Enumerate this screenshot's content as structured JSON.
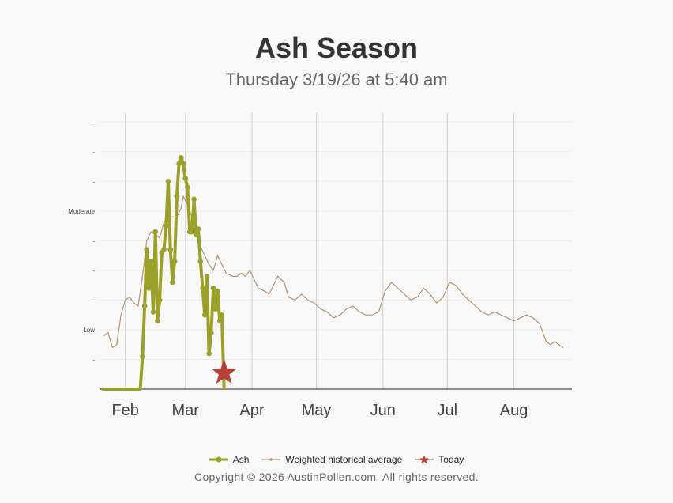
{
  "title": "Ash Season",
  "subtitle": "Thursday 3/19/26 at 5:40 am",
  "copyright": "Copyright © 2026 AustinPollen.com.  All rights reserved.",
  "colors": {
    "ash": "#9aa02a",
    "historical": "#b9926c",
    "today": "#b8403a",
    "grid": "#d0d0d0",
    "axis": "#222222"
  },
  "chart_data": {
    "type": "line",
    "x_axis_type": "date",
    "x_tick_labels": [
      {
        "label": "Feb",
        "date": "2026-02-01"
      },
      {
        "label": "Mar",
        "date": "2026-03-01"
      },
      {
        "label": "Apr",
        "date": "2026-04-01"
      },
      {
        "label": "May",
        "date": "2026-05-01"
      },
      {
        "label": "Jun",
        "date": "2026-06-01"
      },
      {
        "label": "Jul",
        "date": "2026-07-01"
      },
      {
        "label": "Aug",
        "date": "2026-08-01"
      }
    ],
    "xlim": [
      "2026-01-20",
      "2026-08-28"
    ],
    "y_tick_labels": [
      {
        "label": "-",
        "value": 1
      },
      {
        "label": "Low",
        "value": 2
      },
      {
        "label": "-",
        "value": 3
      },
      {
        "label": "-",
        "value": 4
      },
      {
        "label": "-",
        "value": 5
      },
      {
        "label": "Moderate",
        "value": 6
      },
      {
        "label": "-",
        "value": 7
      },
      {
        "label": "-",
        "value": 8
      },
      {
        "label": "-",
        "value": 9
      }
    ],
    "ylim": [
      0,
      9.3
    ],
    "legend_position": "bottom",
    "series": [
      {
        "name": "Ash",
        "points": [
          [
            "2026-01-21",
            0
          ],
          [
            "2026-01-28",
            0
          ],
          [
            "2026-02-05",
            0
          ],
          [
            "2026-02-08",
            0
          ],
          [
            "2026-02-09",
            1.1
          ],
          [
            "2026-02-10",
            2.8
          ],
          [
            "2026-02-11",
            4.7
          ],
          [
            "2026-02-12",
            3.4
          ],
          [
            "2026-02-13",
            4.3
          ],
          [
            "2026-02-14",
            2.6
          ],
          [
            "2026-02-15",
            5.3
          ],
          [
            "2026-02-16",
            2.3
          ],
          [
            "2026-02-17",
            3.0
          ],
          [
            "2026-02-18",
            4.6
          ],
          [
            "2026-02-19",
            4.7
          ],
          [
            "2026-02-20",
            5.5
          ],
          [
            "2026-02-21",
            7.0
          ],
          [
            "2026-02-22",
            4.7
          ],
          [
            "2026-02-23",
            3.6
          ],
          [
            "2026-02-24",
            4.3
          ],
          [
            "2026-02-25",
            6.5
          ],
          [
            "2026-02-26",
            7.6
          ],
          [
            "2026-02-27",
            7.8
          ],
          [
            "2026-02-28",
            7.6
          ],
          [
            "2026-03-01",
            7.1
          ],
          [
            "2026-03-02",
            6.8
          ],
          [
            "2026-03-03",
            5.3
          ],
          [
            "2026-03-04",
            5.3
          ],
          [
            "2026-03-05",
            6.4
          ],
          [
            "2026-03-06",
            5.2
          ],
          [
            "2026-03-07",
            5.4
          ],
          [
            "2026-03-08",
            4.3
          ],
          [
            "2026-03-09",
            3.4
          ],
          [
            "2026-03-10",
            2.5
          ],
          [
            "2026-03-11",
            3.8
          ],
          [
            "2026-03-12",
            1.2
          ],
          [
            "2026-03-13",
            1.9
          ],
          [
            "2026-03-14",
            3.4
          ],
          [
            "2026-03-15",
            2.7
          ],
          [
            "2026-03-16",
            3.3
          ],
          [
            "2026-03-17",
            2.3
          ],
          [
            "2026-03-18",
            2.5
          ],
          [
            "2026-03-19",
            0
          ]
        ]
      },
      {
        "name": "Weighted historical average",
        "points": [
          [
            "2026-01-22",
            1.8
          ],
          [
            "2026-01-24",
            1.9
          ],
          [
            "2026-01-26",
            1.4
          ],
          [
            "2026-01-28",
            1.5
          ],
          [
            "2026-01-30",
            2.5
          ],
          [
            "2026-02-01",
            3.0
          ],
          [
            "2026-02-03",
            3.1
          ],
          [
            "2026-02-05",
            2.9
          ],
          [
            "2026-02-07",
            2.8
          ],
          [
            "2026-02-09",
            3.8
          ],
          [
            "2026-02-11",
            5.0
          ],
          [
            "2026-02-13",
            5.3
          ],
          [
            "2026-02-15",
            5.2
          ],
          [
            "2026-02-17",
            5.1
          ],
          [
            "2026-02-19",
            5.6
          ],
          [
            "2026-02-21",
            5.8
          ],
          [
            "2026-02-23",
            5.8
          ],
          [
            "2026-02-25",
            5.8
          ],
          [
            "2026-02-27",
            6.1
          ],
          [
            "2026-02-28",
            6.5
          ],
          [
            "2026-03-02",
            6.2
          ],
          [
            "2026-03-04",
            5.8
          ],
          [
            "2026-03-06",
            5.3
          ],
          [
            "2026-03-08",
            4.8
          ],
          [
            "2026-03-10",
            4.5
          ],
          [
            "2026-03-12",
            4.2
          ],
          [
            "2026-03-14",
            4.0
          ],
          [
            "2026-03-16",
            4.5
          ],
          [
            "2026-03-18",
            4.2
          ],
          [
            "2026-03-20",
            3.9
          ],
          [
            "2026-03-23",
            3.8
          ],
          [
            "2026-03-25",
            3.8
          ],
          [
            "2026-03-27",
            3.9
          ],
          [
            "2026-03-29",
            3.8
          ],
          [
            "2026-03-31",
            4.0
          ],
          [
            "2026-04-02",
            3.7
          ],
          [
            "2026-04-04",
            3.4
          ],
          [
            "2026-04-07",
            3.3
          ],
          [
            "2026-04-09",
            3.2
          ],
          [
            "2026-04-11",
            3.5
          ],
          [
            "2026-04-13",
            3.8
          ],
          [
            "2026-04-16",
            3.6
          ],
          [
            "2026-04-18",
            3.1
          ],
          [
            "2026-04-21",
            3.0
          ],
          [
            "2026-04-24",
            3.2
          ],
          [
            "2026-04-27",
            3.0
          ],
          [
            "2026-04-30",
            2.9
          ],
          [
            "2026-05-03",
            2.7
          ],
          [
            "2026-05-06",
            2.6
          ],
          [
            "2026-05-09",
            2.4
          ],
          [
            "2026-05-12",
            2.5
          ],
          [
            "2026-05-15",
            2.7
          ],
          [
            "2026-05-18",
            2.8
          ],
          [
            "2026-05-21",
            2.6
          ],
          [
            "2026-05-24",
            2.5
          ],
          [
            "2026-05-27",
            2.5
          ],
          [
            "2026-05-30",
            2.6
          ],
          [
            "2026-06-02",
            3.3
          ],
          [
            "2026-06-05",
            3.6
          ],
          [
            "2026-06-08",
            3.4
          ],
          [
            "2026-06-11",
            3.2
          ],
          [
            "2026-06-14",
            3.0
          ],
          [
            "2026-06-17",
            3.1
          ],
          [
            "2026-06-20",
            3.4
          ],
          [
            "2026-06-23",
            3.2
          ],
          [
            "2026-06-26",
            2.9
          ],
          [
            "2026-06-29",
            3.1
          ],
          [
            "2026-07-02",
            3.6
          ],
          [
            "2026-07-05",
            3.5
          ],
          [
            "2026-07-08",
            3.2
          ],
          [
            "2026-07-11",
            3.0
          ],
          [
            "2026-07-14",
            2.8
          ],
          [
            "2026-07-17",
            2.6
          ],
          [
            "2026-07-20",
            2.5
          ],
          [
            "2026-07-23",
            2.6
          ],
          [
            "2026-07-26",
            2.5
          ],
          [
            "2026-07-29",
            2.4
          ],
          [
            "2026-08-01",
            2.3
          ],
          [
            "2026-08-04",
            2.4
          ],
          [
            "2026-08-07",
            2.5
          ],
          [
            "2026-08-10",
            2.4
          ],
          [
            "2026-08-13",
            2.2
          ],
          [
            "2026-08-16",
            1.6
          ],
          [
            "2026-08-18",
            1.5
          ],
          [
            "2026-08-20",
            1.6
          ],
          [
            "2026-08-22",
            1.5
          ],
          [
            "2026-08-24",
            1.4
          ]
        ]
      }
    ],
    "today": {
      "name": "Today",
      "date": "2026-03-19",
      "value": 0.55
    }
  }
}
